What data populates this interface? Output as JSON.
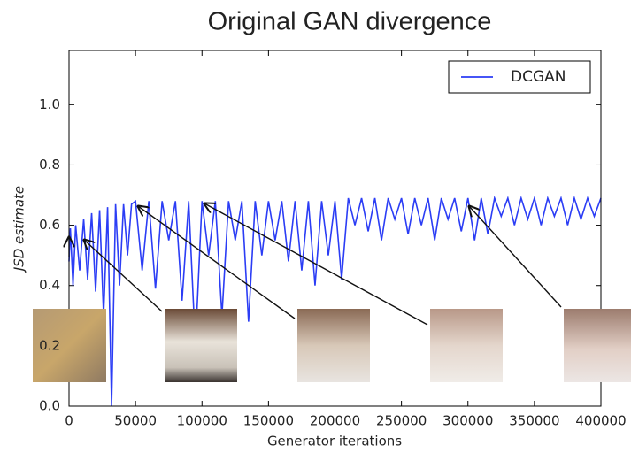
{
  "chart_data": {
    "type": "line",
    "title": "Original GAN divergence",
    "xlabel": "Generator iterations",
    "ylabel": "JSD estimate",
    "xlim": [
      0,
      400000
    ],
    "ylim": [
      0,
      1.18
    ],
    "xticks": [
      0,
      50000,
      100000,
      150000,
      200000,
      250000,
      300000,
      350000,
      400000
    ],
    "yticks": [
      {
        "value": 0,
        "label": "0.0"
      },
      0.2,
      0.4,
      0.6,
      0.8,
      {
        "value": 1,
        "label": "1.0"
      }
    ],
    "legend": "upper right",
    "series": [
      {
        "name": "DCGAN",
        "color": "#2b3df5",
        "x": [
          0,
          1000,
          3000,
          5000,
          8000,
          11000,
          14000,
          17000,
          20000,
          23000,
          26000,
          29000,
          32000,
          35000,
          38000,
          41000,
          44000,
          47000,
          50000,
          55000,
          60000,
          65000,
          70000,
          75000,
          80000,
          85000,
          90000,
          95000,
          100000,
          105000,
          110000,
          115000,
          120000,
          125000,
          130000,
          135000,
          140000,
          145000,
          150000,
          155000,
          160000,
          165000,
          170000,
          175000,
          180000,
          185000,
          190000,
          195000,
          200000,
          205000,
          210000,
          215000,
          220000,
          225000,
          230000,
          235000,
          240000,
          245000,
          250000,
          255000,
          260000,
          265000,
          270000,
          275000,
          280000,
          285000,
          290000,
          295000,
          300000,
          305000,
          310000,
          315000,
          320000,
          325000,
          330000,
          335000,
          340000,
          345000,
          350000,
          355000,
          360000,
          365000,
          370000,
          375000,
          380000,
          385000,
          390000,
          395000,
          400000
        ],
        "values": [
          0.48,
          0.59,
          0.4,
          0.6,
          0.45,
          0.62,
          0.42,
          0.64,
          0.38,
          0.65,
          0.3,
          0.66,
          0.0,
          0.67,
          0.4,
          0.67,
          0.5,
          0.67,
          0.68,
          0.45,
          0.68,
          0.39,
          0.68,
          0.55,
          0.68,
          0.35,
          0.68,
          0.2,
          0.68,
          0.5,
          0.68,
          0.3,
          0.68,
          0.55,
          0.68,
          0.28,
          0.68,
          0.5,
          0.68,
          0.55,
          0.68,
          0.48,
          0.68,
          0.45,
          0.68,
          0.4,
          0.68,
          0.5,
          0.68,
          0.42,
          0.69,
          0.6,
          0.69,
          0.58,
          0.69,
          0.55,
          0.69,
          0.62,
          0.69,
          0.57,
          0.69,
          0.6,
          0.69,
          0.55,
          0.69,
          0.62,
          0.69,
          0.58,
          0.69,
          0.55,
          0.69,
          0.57,
          0.69,
          0.63,
          0.69,
          0.6,
          0.69,
          0.62,
          0.69,
          0.6,
          0.69,
          0.63,
          0.69,
          0.6,
          0.69,
          0.62,
          0.69,
          0.63,
          0.69
        ]
      }
    ]
  }
}
